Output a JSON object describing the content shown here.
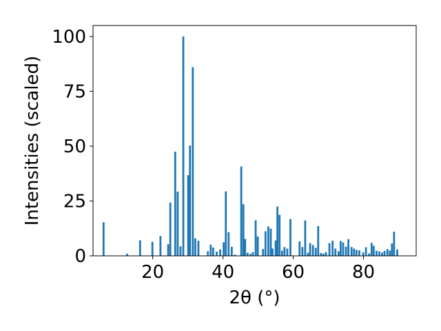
{
  "chart_data": {
    "type": "bar",
    "xlabel": "2θ (°)",
    "ylabel": "Intensities (scaled)",
    "xlim": [
      3,
      95
    ],
    "ylim": [
      0,
      105
    ],
    "xticks": [
      20,
      40,
      60,
      80
    ],
    "yticks": [
      0,
      25,
      50,
      75,
      100
    ],
    "bar_color": "#1f77b4",
    "grid": false,
    "x": [
      6.0,
      12.7,
      16.4,
      19.9,
      22.2,
      24.4,
      25.0,
      26.4,
      27.1,
      27.9,
      28.7,
      30.1,
      30.6,
      31.4,
      32.1,
      33.0,
      35.7,
      36.5,
      37.2,
      38.2,
      39.2,
      40.2,
      40.8,
      41.6,
      42.5,
      43.4,
      45.2,
      45.8,
      46.3,
      47.0,
      47.8,
      48.5,
      49.3,
      49.9,
      51.4,
      52.1,
      52.9,
      53.6,
      54.1,
      55.0,
      55.5,
      56.1,
      56.8,
      57.5,
      58.3,
      59.2,
      61.8,
      62.6,
      63.4,
      64.2,
      64.8,
      65.6,
      66.4,
      67.1,
      67.9,
      68.6,
      69.3,
      70.3,
      71.2,
      72.0,
      72.9,
      73.5,
      74.2,
      75.0,
      75.7,
      76.6,
      77.3,
      78.0,
      78.8,
      79.9,
      80.7,
      81.6,
      82.3,
      82.9,
      83.7,
      84.5,
      85.3,
      86.0,
      86.8,
      87.5,
      88.1,
      88.7,
      89.6
    ],
    "values": [
      15.3,
      1.0,
      7.1,
      6.4,
      9.0,
      5.3,
      24.3,
      47.5,
      29.3,
      4.3,
      100.0,
      36.8,
      50.3,
      86.0,
      8.0,
      6.9,
      2.1,
      5.1,
      3.8,
      1.9,
      2.9,
      6.2,
      29.4,
      10.8,
      4.1,
      0.6,
      40.7,
      23.5,
      7.7,
      1.4,
      0.9,
      1.7,
      16.2,
      8.8,
      3.1,
      11.2,
      13.4,
      12.4,
      3.3,
      7.0,
      22.5,
      18.7,
      2.4,
      4.0,
      3.3,
      16.8,
      6.6,
      4.0,
      16.1,
      1.4,
      5.8,
      4.9,
      3.7,
      13.6,
      1.3,
      1.0,
      1.7,
      5.8,
      6.9,
      3.3,
      2.1,
      6.8,
      6.1,
      4.2,
      7.6,
      4.0,
      3.3,
      2.7,
      2.5,
      1.6,
      3.9,
      1.1,
      5.9,
      4.6,
      2.3,
      2.0,
      1.5,
      2.2,
      3.1,
      2.4,
      5.6,
      11.0,
      2.9
    ]
  }
}
